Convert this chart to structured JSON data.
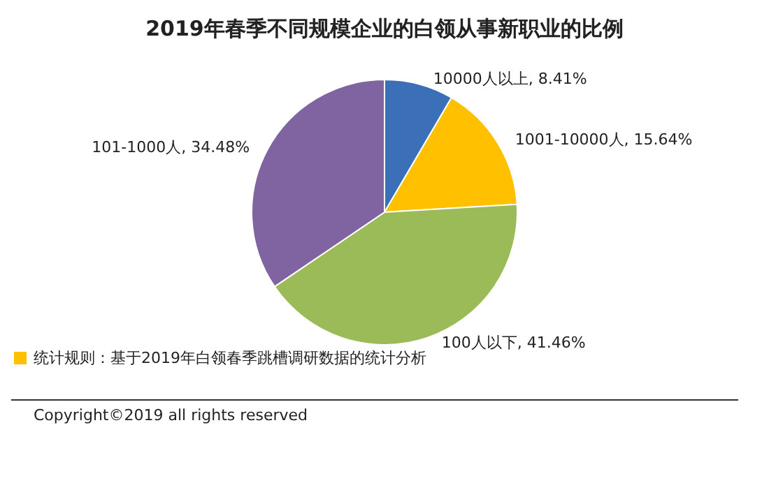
{
  "chart_data": {
    "type": "pie",
    "title": "2019年春季不同规模企业的白领从事新职业的比例",
    "categories": [
      "10000人以上",
      "1001-10000人",
      "100人以下",
      "101-1000人"
    ],
    "values": [
      8.41,
      15.64,
      41.46,
      34.48
    ],
    "value_labels": [
      "8.41%",
      "15.64%",
      "41.46%",
      "34.48%"
    ],
    "colors": [
      "#3b70b8",
      "#ffc000",
      "#9bbb59",
      "#8064a2"
    ],
    "legend": false,
    "annotations": [
      "统计规则：基于2019年白领春季跳槽调研数据的统计分析",
      "Copyright©2019 all rights reserved"
    ]
  }
}
